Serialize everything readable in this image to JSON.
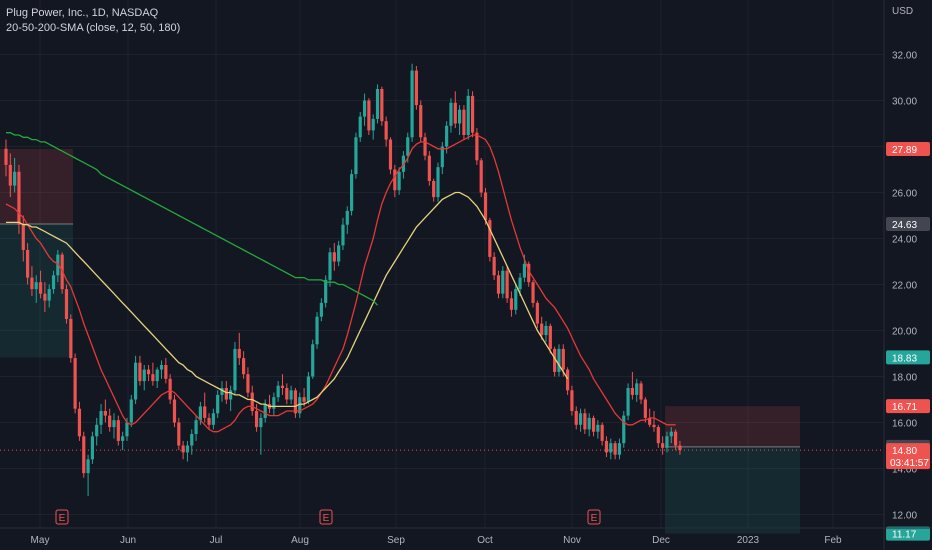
{
  "header": {
    "symbol_line": "Plug Power, Inc., 1D, NASDAQ",
    "indicator_line": "20-50-200-SMA (close, 12, 50, 180)"
  },
  "colors": {
    "background": "#131722",
    "up": "#26a69a",
    "down": "#ef5350",
    "sma_fast": "#e53935",
    "sma_mid": "#e8d27a",
    "sma_slow": "#22ab3a",
    "grid": "#1e222d"
  },
  "chart_data": {
    "type": "candlestick",
    "title": "Plug Power, Inc., 1D, NASDAQ",
    "currency": "USD",
    "ylim": [
      11.0,
      33.0
    ],
    "y_ticks": [
      "32.00",
      "30.00",
      "28.00",
      "26.00",
      "24.00",
      "22.00",
      "20.00",
      "18.00",
      "16.00",
      "14.00",
      "12.00"
    ],
    "x_ticks": [
      "May",
      "Jun",
      "Jul",
      "Aug",
      "Sep",
      "Oct",
      "Nov",
      "Dec",
      "2023",
      "Feb"
    ],
    "earnings_markers": [
      {
        "date": "May",
        "label": "E"
      },
      {
        "date": "Aug",
        "label": "E"
      },
      {
        "date": "Nov",
        "label": "E"
      }
    ],
    "price_badges": [
      {
        "value": 27.89,
        "label": "27.89",
        "color": "#ef5350"
      },
      {
        "value": 24.63,
        "label": "24.63",
        "color": "#434651"
      },
      {
        "value": 18.83,
        "label": "18.83",
        "color": "#26a69a"
      },
      {
        "value": 16.71,
        "label": "16.71",
        "color": "#ef5350"
      },
      {
        "value": 14.94,
        "label": "14.94",
        "color": "#434651"
      },
      {
        "value": 14.8,
        "label": "14.80",
        "sublabel": "03:41:57",
        "color": "#ef5350"
      },
      {
        "value": 11.17,
        "label": "11.17",
        "color": "#26a69a"
      }
    ],
    "last_price": 14.8,
    "position_zones": [
      {
        "kind": "loss",
        "from": 24.63,
        "to": 27.89,
        "span": [
          "Apr",
          "Apr"
        ]
      },
      {
        "kind": "profit",
        "from": 18.83,
        "to": 24.63,
        "span": [
          "Apr",
          "Apr"
        ]
      },
      {
        "kind": "loss",
        "from": 14.94,
        "to": 16.71,
        "span": [
          "Dec",
          "Jan"
        ]
      },
      {
        "kind": "profit",
        "from": 11.17,
        "to": 14.94,
        "span": [
          "Dec",
          "Jan"
        ]
      }
    ],
    "candles": [
      [
        27.9,
        28.3,
        26.7,
        27.2
      ],
      [
        27.2,
        27.7,
        25.8,
        26.3
      ],
      [
        26.3,
        27.5,
        26.0,
        26.9
      ],
      [
        26.9,
        27.2,
        24.2,
        24.6
      ],
      [
        24.6,
        25.0,
        23.0,
        23.5
      ],
      [
        23.5,
        23.8,
        22.0,
        22.3
      ],
      [
        22.3,
        22.8,
        21.5,
        21.8
      ],
      [
        21.8,
        22.4,
        21.2,
        22.1
      ],
      [
        22.1,
        22.6,
        21.4,
        21.6
      ],
      [
        21.6,
        22.1,
        20.8,
        21.3
      ],
      [
        21.3,
        22.0,
        21.0,
        21.8
      ],
      [
        21.8,
        22.6,
        21.6,
        22.4
      ],
      [
        22.4,
        23.5,
        22.1,
        23.3
      ],
      [
        23.3,
        23.4,
        21.6,
        21.8
      ],
      [
        21.8,
        22.0,
        20.3,
        20.5
      ],
      [
        20.5,
        20.7,
        18.6,
        18.8
      ],
      [
        18.8,
        19.0,
        16.4,
        16.6
      ],
      [
        16.6,
        16.9,
        15.2,
        15.4
      ],
      [
        15.4,
        15.6,
        13.6,
        13.8
      ],
      [
        13.8,
        14.6,
        12.8,
        14.4
      ],
      [
        14.4,
        15.6,
        14.2,
        15.4
      ],
      [
        15.4,
        16.2,
        15.0,
        15.9
      ],
      [
        15.9,
        16.8,
        15.5,
        16.5
      ],
      [
        16.5,
        17.0,
        16.0,
        16.3
      ],
      [
        16.3,
        16.6,
        15.6,
        15.8
      ],
      [
        15.8,
        16.4,
        15.3,
        16.1
      ],
      [
        16.1,
        16.3,
        15.0,
        15.2
      ],
      [
        15.2,
        15.6,
        14.8,
        15.4
      ],
      [
        15.4,
        16.2,
        15.2,
        16.0
      ],
      [
        16.0,
        17.2,
        15.8,
        17.0
      ],
      [
        17.0,
        18.9,
        16.8,
        18.6
      ],
      [
        18.6,
        18.9,
        17.6,
        17.8
      ],
      [
        17.8,
        18.5,
        17.4,
        18.3
      ],
      [
        18.3,
        18.5,
        17.8,
        18.1
      ],
      [
        18.1,
        18.6,
        17.6,
        17.8
      ],
      [
        17.8,
        18.4,
        17.5,
        18.3
      ],
      [
        18.3,
        18.7,
        17.9,
        18.5
      ],
      [
        18.5,
        18.8,
        17.7,
        17.9
      ],
      [
        17.9,
        18.1,
        16.8,
        17.0
      ],
      [
        17.0,
        17.2,
        15.8,
        16.0
      ],
      [
        16.0,
        16.2,
        14.8,
        15.0
      ],
      [
        15.0,
        15.2,
        14.4,
        14.7
      ],
      [
        14.7,
        15.2,
        14.3,
        15.0
      ],
      [
        15.0,
        15.7,
        14.6,
        15.5
      ],
      [
        15.5,
        16.3,
        15.2,
        16.1
      ],
      [
        16.1,
        16.9,
        15.9,
        16.7
      ],
      [
        16.7,
        17.3,
        16.0,
        16.2
      ],
      [
        16.2,
        16.4,
        15.7,
        15.9
      ],
      [
        15.9,
        16.6,
        15.7,
        16.4
      ],
      [
        16.4,
        17.4,
        16.2,
        17.2
      ],
      [
        17.2,
        17.8,
        16.9,
        17.5
      ],
      [
        17.5,
        17.8,
        16.8,
        17.0
      ],
      [
        17.0,
        17.6,
        16.5,
        17.4
      ],
      [
        17.4,
        19.5,
        17.2,
        19.2
      ],
      [
        19.2,
        19.9,
        18.5,
        18.8
      ],
      [
        18.8,
        19.1,
        17.9,
        18.1
      ],
      [
        18.1,
        18.4,
        17.1,
        17.3
      ],
      [
        17.3,
        17.6,
        16.3,
        16.5
      ],
      [
        16.5,
        16.8,
        15.6,
        15.8
      ],
      [
        15.8,
        16.4,
        14.6,
        16.2
      ],
      [
        16.2,
        17.0,
        16.0,
        16.8
      ],
      [
        16.8,
        17.2,
        16.4,
        16.6
      ],
      [
        16.6,
        17.3,
        16.3,
        17.1
      ],
      [
        17.1,
        17.8,
        16.9,
        17.6
      ],
      [
        17.6,
        18.1,
        17.2,
        17.5
      ],
      [
        17.5,
        17.7,
        16.8,
        17.0
      ],
      [
        17.0,
        17.6,
        16.8,
        17.4
      ],
      [
        17.4,
        17.5,
        16.2,
        16.4
      ],
      [
        16.4,
        17.3,
        16.2,
        17.1
      ],
      [
        17.1,
        17.5,
        16.7,
        16.9
      ],
      [
        16.9,
        18.2,
        16.8,
        18.0
      ],
      [
        18.0,
        19.6,
        17.9,
        19.4
      ],
      [
        19.4,
        20.8,
        19.2,
        20.6
      ],
      [
        20.6,
        21.4,
        20.4,
        21.2
      ],
      [
        21.2,
        22.4,
        21.0,
        22.2
      ],
      [
        22.2,
        23.6,
        21.9,
        23.4
      ],
      [
        23.4,
        23.8,
        22.6,
        23.0
      ],
      [
        23.0,
        23.9,
        22.8,
        23.7
      ],
      [
        23.7,
        24.9,
        23.5,
        24.6
      ],
      [
        24.6,
        25.4,
        24.2,
        25.2
      ],
      [
        25.2,
        27.0,
        25.0,
        26.8
      ],
      [
        26.8,
        28.6,
        26.6,
        28.4
      ],
      [
        28.4,
        29.5,
        28.2,
        29.3
      ],
      [
        29.3,
        30.3,
        28.9,
        30.0
      ],
      [
        30.0,
        30.1,
        28.5,
        28.7
      ],
      [
        28.7,
        29.4,
        28.3,
        29.2
      ],
      [
        29.2,
        30.7,
        29.0,
        30.5
      ],
      [
        30.5,
        30.6,
        28.9,
        29.1
      ],
      [
        29.1,
        29.3,
        28.0,
        28.3
      ],
      [
        28.3,
        28.4,
        26.8,
        27.0
      ],
      [
        27.0,
        27.2,
        25.8,
        26.1
      ],
      [
        26.1,
        27.1,
        25.9,
        26.9
      ],
      [
        26.9,
        27.8,
        26.6,
        27.6
      ],
      [
        27.6,
        28.6,
        27.3,
        28.4
      ],
      [
        28.4,
        31.6,
        28.2,
        31.3
      ],
      [
        31.3,
        31.5,
        29.6,
        29.8
      ],
      [
        29.8,
        30.0,
        28.2,
        28.4
      ],
      [
        28.4,
        28.6,
        27.4,
        27.6
      ],
      [
        27.6,
        27.8,
        26.3,
        26.5
      ],
      [
        26.5,
        26.6,
        25.6,
        25.8
      ],
      [
        25.8,
        27.3,
        25.6,
        27.1
      ],
      [
        27.1,
        28.2,
        26.8,
        28.0
      ],
      [
        28.0,
        29.1,
        27.7,
        28.9
      ],
      [
        28.9,
        30.1,
        28.6,
        29.9
      ],
      [
        29.9,
        30.4,
        28.8,
        29.0
      ],
      [
        29.0,
        29.8,
        28.5,
        29.6
      ],
      [
        29.6,
        29.8,
        28.3,
        28.5
      ],
      [
        28.5,
        30.5,
        28.3,
        30.2
      ],
      [
        30.2,
        30.4,
        28.4,
        28.6
      ],
      [
        28.6,
        28.8,
        27.2,
        27.4
      ],
      [
        27.4,
        27.5,
        25.8,
        26.0
      ],
      [
        26.0,
        26.2,
        24.6,
        24.8
      ],
      [
        24.8,
        24.9,
        23.0,
        23.2
      ],
      [
        23.2,
        23.4,
        22.2,
        22.4
      ],
      [
        22.4,
        22.6,
        21.4,
        21.6
      ],
      [
        21.6,
        22.8,
        21.4,
        22.6
      ],
      [
        22.6,
        22.8,
        21.2,
        21.4
      ],
      [
        21.4,
        21.7,
        20.6,
        20.9
      ],
      [
        20.9,
        22.0,
        20.7,
        21.8
      ],
      [
        21.8,
        22.5,
        21.5,
        22.3
      ],
      [
        22.3,
        23.3,
        22.1,
        22.9
      ],
      [
        22.9,
        23.0,
        21.9,
        22.1
      ],
      [
        22.1,
        22.2,
        21.0,
        21.2
      ],
      [
        21.2,
        21.3,
        20.1,
        20.3
      ],
      [
        20.3,
        20.6,
        19.6,
        19.8
      ],
      [
        19.8,
        20.4,
        19.5,
        20.2
      ],
      [
        20.2,
        20.3,
        19.0,
        19.2
      ],
      [
        19.2,
        19.3,
        18.0,
        18.2
      ],
      [
        18.2,
        19.4,
        18.0,
        19.2
      ],
      [
        19.2,
        19.4,
        18.0,
        18.3
      ],
      [
        18.3,
        18.4,
        17.2,
        17.4
      ],
      [
        17.4,
        17.6,
        16.3,
        16.5
      ],
      [
        16.5,
        16.7,
        15.7,
        15.9
      ],
      [
        15.9,
        16.6,
        15.6,
        16.4
      ],
      [
        16.4,
        16.6,
        15.5,
        15.7
      ],
      [
        15.7,
        16.4,
        15.4,
        16.2
      ],
      [
        16.2,
        16.3,
        15.4,
        15.6
      ],
      [
        15.6,
        16.1,
        15.3,
        15.9
      ],
      [
        15.9,
        16.0,
        15.0,
        15.2
      ],
      [
        15.2,
        15.4,
        14.5,
        14.7
      ],
      [
        14.7,
        15.3,
        14.4,
        15.1
      ],
      [
        15.1,
        15.2,
        14.4,
        14.6
      ],
      [
        14.6,
        15.3,
        14.4,
        15.1
      ],
      [
        15.1,
        16.5,
        14.9,
        16.3
      ],
      [
        16.3,
        17.7,
        16.1,
        17.5
      ],
      [
        17.5,
        18.2,
        17.0,
        17.2
      ],
      [
        17.2,
        17.9,
        16.9,
        17.7
      ],
      [
        17.7,
        17.8,
        16.8,
        17.0
      ],
      [
        17.0,
        17.1,
        16.0,
        16.2
      ],
      [
        16.2,
        16.6,
        15.8,
        15.9
      ],
      [
        15.9,
        16.5,
        15.6,
        15.8
      ],
      [
        15.8,
        15.9,
        14.9,
        15.1
      ],
      [
        15.1,
        15.4,
        14.6,
        14.9
      ],
      [
        14.9,
        15.6,
        14.7,
        15.4
      ],
      [
        15.4,
        15.8,
        15.1,
        15.6
      ],
      [
        15.6,
        15.7,
        14.8,
        15.0
      ],
      [
        15.0,
        15.2,
        14.6,
        14.8
      ]
    ],
    "series": [
      {
        "name": "SMA 12",
        "values": [
          25.5,
          25.4,
          25.3,
          25.1,
          24.9,
          24.6,
          24.3,
          24.0,
          23.8,
          23.5,
          23.2,
          23.0,
          22.9,
          22.6,
          22.2,
          21.9,
          21.4,
          20.9,
          20.3,
          19.8,
          19.3,
          18.8,
          18.3,
          17.9,
          17.5,
          17.1,
          16.7,
          16.3,
          16.0,
          15.9,
          16.0,
          16.2,
          16.4,
          16.6,
          16.8,
          17.0,
          17.2,
          17.3,
          17.4,
          17.3,
          17.1,
          16.9,
          16.7,
          16.5,
          16.3,
          16.1,
          15.9,
          15.7,
          15.6,
          15.6,
          15.7,
          15.8,
          15.9,
          16.1,
          16.4,
          16.6,
          16.7,
          16.7,
          16.6,
          16.5,
          16.4,
          16.3,
          16.3,
          16.3,
          16.4,
          16.5,
          16.5,
          16.5,
          16.5,
          16.6,
          16.7,
          16.8,
          17.0,
          17.3,
          17.6,
          18.0,
          18.4,
          18.8,
          19.2,
          19.8,
          20.5,
          21.2,
          22.0,
          22.8,
          23.4,
          24.0,
          24.8,
          25.5,
          26.0,
          26.4,
          26.7,
          27.0,
          27.2,
          27.5,
          27.9,
          28.1,
          28.2,
          28.2,
          28.1,
          28.0,
          27.9,
          27.9,
          27.9,
          28.0,
          28.1,
          28.2,
          28.3,
          28.4,
          28.5,
          28.5,
          28.4,
          28.3,
          28.0,
          27.5,
          26.9,
          26.2,
          25.5,
          24.8,
          24.2,
          23.6,
          23.1,
          22.6,
          22.3,
          22.0,
          21.7,
          21.4,
          21.2,
          21.0,
          20.7,
          20.4,
          20.1,
          19.7,
          19.3,
          18.9,
          18.6,
          18.3,
          17.9,
          17.6,
          17.3,
          17.0,
          16.7,
          16.4,
          16.2,
          16.0,
          15.9,
          15.9,
          16.0,
          16.1,
          16.1,
          16.2,
          16.2,
          16.1,
          16.0,
          15.9,
          15.9,
          15.9
        ]
      },
      {
        "name": "SMA 50",
        "values": [
          24.7,
          24.7,
          24.7,
          24.7,
          24.6,
          24.6,
          24.5,
          24.5,
          24.4,
          24.3,
          24.2,
          24.1,
          24.0,
          23.9,
          23.8,
          23.6,
          23.4,
          23.2,
          23.0,
          22.8,
          22.6,
          22.4,
          22.2,
          22.0,
          21.8,
          21.6,
          21.4,
          21.2,
          21.0,
          20.8,
          20.6,
          20.4,
          20.2,
          20.0,
          19.8,
          19.6,
          19.4,
          19.2,
          19.0,
          18.8,
          18.6,
          18.5,
          18.3,
          18.2,
          18.0,
          17.9,
          17.8,
          17.7,
          17.6,
          17.5,
          17.4,
          17.3,
          17.3,
          17.2,
          17.2,
          17.1,
          17.0,
          17.0,
          16.9,
          16.8,
          16.8,
          16.7,
          16.7,
          16.7,
          16.7,
          16.7,
          16.7,
          16.7,
          16.8,
          16.8,
          16.9,
          17.0,
          17.1,
          17.3,
          17.5,
          17.7,
          17.9,
          18.2,
          18.5,
          18.8,
          19.2,
          19.6,
          20.0,
          20.4,
          20.8,
          21.2,
          21.6,
          22.0,
          22.4,
          22.7,
          23.0,
          23.3,
          23.6,
          23.9,
          24.2,
          24.5,
          24.7,
          24.9,
          25.1,
          25.3,
          25.5,
          25.7,
          25.8,
          25.9,
          26.0,
          26.0,
          25.9,
          25.8,
          25.6,
          25.4,
          25.1,
          24.8,
          24.4,
          24.0,
          23.6,
          23.2,
          22.8,
          22.4,
          22.0,
          21.6,
          21.2,
          20.8,
          20.4,
          20.0,
          19.7,
          19.4,
          19.1,
          18.8,
          18.5,
          18.2,
          17.9
        ]
      },
      {
        "name": "SMA 180",
        "values": [
          28.6,
          28.6,
          28.5,
          28.5,
          28.4,
          28.4,
          28.3,
          28.3,
          28.2,
          28.2,
          28.1,
          28.0,
          27.9,
          27.8,
          27.7,
          27.6,
          27.5,
          27.4,
          27.3,
          27.2,
          27.1,
          27.0,
          26.8,
          26.7,
          26.6,
          26.5,
          26.4,
          26.3,
          26.2,
          26.1,
          26.0,
          25.9,
          25.8,
          25.7,
          25.6,
          25.5,
          25.4,
          25.3,
          25.2,
          25.1,
          25.0,
          24.9,
          24.8,
          24.7,
          24.6,
          24.5,
          24.4,
          24.3,
          24.2,
          24.1,
          24.0,
          23.9,
          23.8,
          23.7,
          23.6,
          23.5,
          23.4,
          23.3,
          23.2,
          23.1,
          23.0,
          22.9,
          22.8,
          22.7,
          22.6,
          22.5,
          22.4,
          22.3,
          22.3,
          22.3,
          22.2,
          22.2,
          22.2,
          22.2,
          22.1,
          22.1,
          22.1,
          22.0,
          22.0,
          21.9,
          21.8,
          21.7,
          21.6,
          21.5,
          21.4,
          21.3,
          21.1
        ]
      }
    ]
  }
}
